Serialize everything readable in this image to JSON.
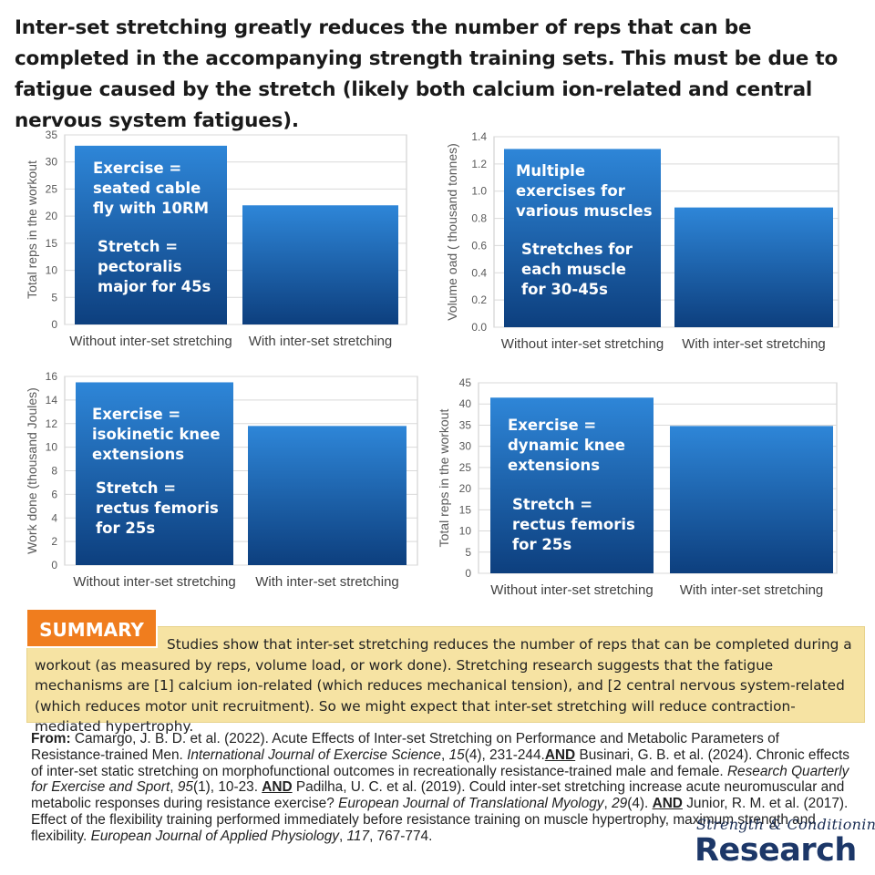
{
  "headline": "Inter-set stretching greatly reduces the number of reps that can be completed in the accompanying strength training sets. This must be due to fatigue caused by the stretch (likely both calcium ion-related and central nervous system fatigues).",
  "colors": {
    "bar_top": "#2e86d8",
    "bar_bottom": "#0d3f7e",
    "grid": "#d9d9d9",
    "summary_bg": "#f6e3a3",
    "summary_tag": "#f07d1e",
    "brand": "#1c3768"
  },
  "chart_data": [
    {
      "type": "bar",
      "title": "",
      "xlabel": "",
      "ylabel": "Total reps in the workout",
      "categories": [
        "Without inter-set stretching",
        "With inter-set stretching"
      ],
      "values": [
        33,
        22
      ],
      "ylim": [
        0,
        35
      ],
      "yticks": [
        "0",
        "5",
        "10",
        "15",
        "20",
        "25",
        "30",
        "35"
      ],
      "grid": true,
      "note_exercise": [
        "Exercise =",
        "seated cable",
        "fly with 10RM"
      ],
      "note_stretch": [
        "Stretch =",
        "pectoralis",
        "major for 45s"
      ]
    },
    {
      "type": "bar",
      "title": "",
      "xlabel": "",
      "ylabel": "Volume oad ( thousand tonnes)",
      "categories": [
        "Without inter-set stretching",
        "With inter-set stretching"
      ],
      "values": [
        1.31,
        0.88
      ],
      "ylim": [
        0,
        1.4
      ],
      "yticks": [
        "0.0",
        "0.2",
        "0.4",
        "0.6",
        "0.8",
        "1.0",
        "1.2",
        "1.4"
      ],
      "grid": true,
      "note_exercise": [
        "Multiple",
        "exercises for",
        "various muscles"
      ],
      "note_stretch": [
        "Stretches for",
        "each muscle",
        "for 30-45s"
      ]
    },
    {
      "type": "bar",
      "title": "",
      "xlabel": "",
      "ylabel": "Work done (thousand Joules)",
      "categories": [
        "Without inter-set stretching",
        "With inter-set stretching"
      ],
      "values": [
        15.5,
        11.8
      ],
      "ylim": [
        0,
        16
      ],
      "yticks": [
        "0",
        "2",
        "4",
        "6",
        "8",
        "10",
        "12",
        "14",
        "16"
      ],
      "grid": true,
      "note_exercise": [
        "Exercise =",
        "isokinetic knee",
        "extensions"
      ],
      "note_stretch": [
        "Stretch =",
        "rectus femoris",
        "for 25s"
      ]
    },
    {
      "type": "bar",
      "title": "",
      "xlabel": "",
      "ylabel": "Total reps in the workout",
      "categories": [
        "Without inter-set stretching",
        "With inter-set stretching"
      ],
      "values": [
        41.5,
        34.8
      ],
      "ylim": [
        0,
        45
      ],
      "yticks": [
        "0",
        "5",
        "10",
        "15",
        "20",
        "25",
        "30",
        "35",
        "40",
        "45"
      ],
      "grid": true,
      "note_exercise": [
        "Exercise =",
        "dynamic knee",
        "extensions"
      ],
      "note_stretch": [
        "Stretch =",
        "rectus femoris",
        "for 25s"
      ]
    }
  ],
  "summary": {
    "tag": "SUMMARY",
    "text": "Studies show that inter-set stretching reduces the number of reps that can be completed during a workout (as measured by reps, volume load, or work done). Stretching research suggests that the fatigue mechanisms are [1] calcium ion-related (which reduces mechanical tension), and [2 central nervous system-related (which reduces motor unit recruitment). So we might expect that inter-set stretching will reduce contraction-mediated hypertrophy."
  },
  "references": {
    "lead": "From:",
    "and": "AND",
    "ref1_a": " Camargo, J. B. D. et al. (2022). Acute Effects of Inter-set Stretching on Performance and Metabolic Parameters of Resistance-trained Men. ",
    "ref1_journal": "International Journal of Exercise Science",
    "ref1_b": ", ",
    "ref1_vol": "15",
    "ref1_c": "(4), 231-244.",
    "ref2_a": " Businari, G. B. et al. (2024). Chronic effects of inter-set static stretching on morphofunctional outcomes in recreationally resistance-trained male and female. ",
    "ref2_journal": "Research Quarterly for Exercise and Sport",
    "ref2_b": ", ",
    "ref2_vol": "95",
    "ref2_c": "(1), 10-23. ",
    "ref3_a": " Padilha, U. C. et al. (2019). Could inter-set stretching increase acute neuromuscular and metabolic responses during resistance exercise? ",
    "ref3_journal": "European Journal of Translational Myology",
    "ref3_b": ", ",
    "ref3_vol": "29",
    "ref3_c": "(4). ",
    "ref4_a": " Junior, R. M. et al. (2017). Effect of the flexibility training performed immediately before resistance training on muscle hypertrophy, maximum strength and flexibility. ",
    "ref4_journal": "European Journal of Applied Physiology",
    "ref4_b": ", ",
    "ref4_vol": "117",
    "ref4_c": ", 767-774."
  },
  "brand": {
    "script": "Strength & Conditioning",
    "word": "Research"
  }
}
